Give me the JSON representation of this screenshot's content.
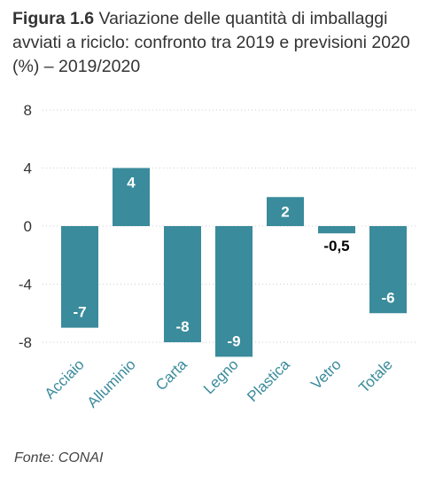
{
  "title_bold": "Figura 1.6",
  "title_rest": " Variazione delle quantità di imballaggi avviati a riciclo: confronto tra 2019 e previsioni 2020 (%) – 2019/2020",
  "source": "Fonte: CONAI",
  "colors": {
    "bar": "#3a8b9b",
    "label_on_bar": "#ffffff",
    "label_outside": "#000000",
    "tick": "#333333",
    "category": "#3a8b9b",
    "grid": "#cfcfcf"
  },
  "chart_data": {
    "type": "bar",
    "categories": [
      "Acciaio",
      "Alluminio",
      "Carta",
      "Legno",
      "Plastica",
      "Vetro",
      "Totale"
    ],
    "values": [
      -7,
      4,
      -8,
      -9,
      2,
      -0.5,
      -6
    ],
    "data_labels": [
      "-7",
      "4",
      "-8",
      "-9",
      "2",
      "-0,5",
      "-6"
    ],
    "yticks": [
      8,
      4,
      0,
      -4,
      -8
    ],
    "ylim": [
      -8,
      8
    ],
    "grid": true
  }
}
